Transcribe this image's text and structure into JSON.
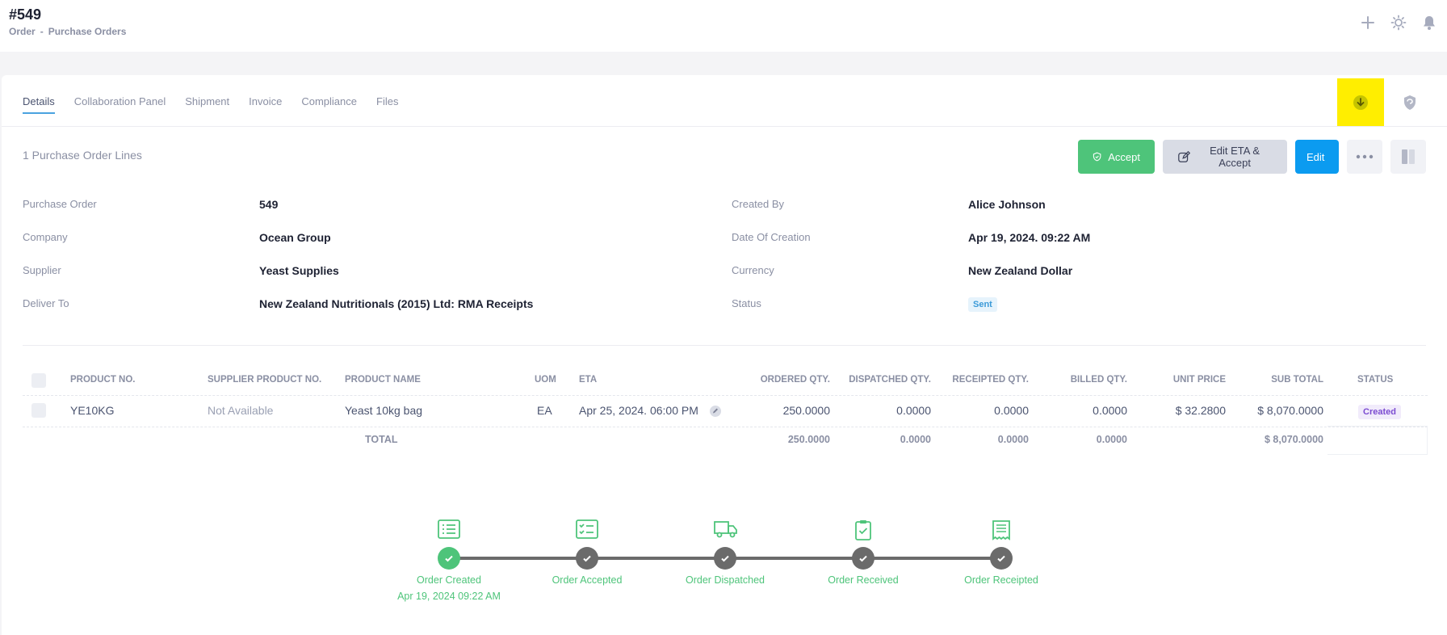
{
  "header": {
    "title": "#549",
    "breadcrumb": [
      "Order",
      "-",
      "Purchase Orders"
    ]
  },
  "tabs": [
    {
      "label": "Details",
      "active": true
    },
    {
      "label": "Collaboration Panel",
      "active": false
    },
    {
      "label": "Shipment",
      "active": false
    },
    {
      "label": "Invoice",
      "active": false
    },
    {
      "label": "Compliance",
      "active": false
    },
    {
      "label": "Files",
      "active": false
    }
  ],
  "lines_count": "1 Purchase Order Lines",
  "actions": {
    "accept": "Accept",
    "edit_eta_accept": "Edit ETA & Accept",
    "edit": "Edit"
  },
  "details": {
    "left": [
      {
        "label": "Purchase Order",
        "value": "549"
      },
      {
        "label": "Company",
        "value": "Ocean Group"
      },
      {
        "label": "Supplier",
        "value": "Yeast Supplies"
      },
      {
        "label": "Deliver To",
        "value": "New Zealand Nutritionals (2015) Ltd: RMA Receipts"
      }
    ],
    "right": [
      {
        "label": "Created By",
        "value": "Alice Johnson"
      },
      {
        "label": "Date Of Creation",
        "value": "Apr 19, 2024. 09:22 AM"
      },
      {
        "label": "Currency",
        "value": "New Zealand Dollar"
      },
      {
        "label": "Status",
        "value": "Sent"
      }
    ]
  },
  "table": {
    "headers": [
      "PRODUCT NO.",
      "SUPPLIER PRODUCT NO.",
      "PRODUCT NAME",
      "UOM",
      "ETA",
      "ORDERED QTY.",
      "DISPATCHED QTY.",
      "RECEIPTED QTY.",
      "BILLED QTY.",
      "UNIT PRICE",
      "SUB TOTAL",
      "STATUS"
    ],
    "rows": [
      {
        "product_no": "YE10KG",
        "supplier_product_no": "Not Available",
        "product_name": "Yeast 10kg bag",
        "uom": "EA",
        "eta": "Apr 25, 2024. 06:00 PM",
        "ordered_qty": "250.0000",
        "dispatched_qty": "0.0000",
        "receipted_qty": "0.0000",
        "billed_qty": "0.0000",
        "unit_price": "$ 32.2800",
        "sub_total": "$ 8,070.0000",
        "status": "Created"
      }
    ],
    "total": {
      "label": "TOTAL",
      "ordered_qty": "250.0000",
      "dispatched_qty": "0.0000",
      "receipted_qty": "0.0000",
      "billed_qty": "0.0000",
      "sub_total": "$ 8,070.0000"
    }
  },
  "progress": {
    "steps": [
      {
        "label": "Order Created",
        "date": "Apr 19, 2024 09:22 AM",
        "done": true,
        "icon": "list-icon"
      },
      {
        "label": "Order Accepted",
        "date": "",
        "done": false,
        "icon": "checklist-icon"
      },
      {
        "label": "Order Dispatched",
        "date": "",
        "done": false,
        "icon": "truck-icon"
      },
      {
        "label": "Order Received",
        "date": "",
        "done": false,
        "icon": "clipboard-check-icon"
      },
      {
        "label": "Order Receipted",
        "date": "",
        "done": false,
        "icon": "receipt-icon"
      }
    ],
    "colors": {
      "done": "#4ec47a",
      "pending": "#6b6b6b"
    }
  },
  "colors": {
    "accept": "#4ec47a",
    "edit": "#0b9bf0",
    "highlight": "#ffee00",
    "status_sent": "#3b9ad8",
    "status_created": "#7b4bd1"
  }
}
